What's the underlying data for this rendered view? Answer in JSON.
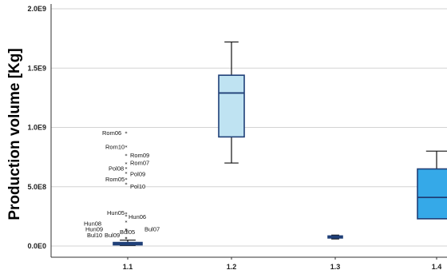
{
  "chart_data": {
    "type": "boxplot",
    "title": "",
    "xlabel": "",
    "ylabel": "Production volume [Kg]",
    "ylim": [
      0,
      2000000000
    ],
    "y_tick_labels": [
      "0.0E0",
      "5.0E8",
      "1.0E9",
      "1.5E9",
      "2.0E9"
    ],
    "grid": true,
    "categories": [
      "1.1",
      "1.2",
      "1.3",
      "1.4"
    ],
    "boxes": [
      {
        "category": "1.1",
        "min": 5000000,
        "q1": 10000000,
        "median": 20000000,
        "q3": 30000000,
        "max": 50000000,
        "color": "#3a6fb0"
      },
      {
        "category": "1.2",
        "min": 700000000,
        "q1": 920000000,
        "median": 1290000000,
        "q3": 1440000000,
        "max": 1720000000,
        "color": "#bfe3f2"
      },
      {
        "category": "1.3",
        "min": 60000000,
        "q1": 68000000,
        "median": 75000000,
        "q3": 85000000,
        "max": 92000000,
        "color": "#444444"
      },
      {
        "category": "1.4",
        "min": 230000000,
        "q1": 230000000,
        "median": 410000000,
        "q3": 650000000,
        "max": 800000000,
        "color": "#35a9e8"
      }
    ],
    "outliers": [
      {
        "category": "1.1",
        "label": "Rom06",
        "value": 950000000
      },
      {
        "category": "1.1",
        "label": "Rom10",
        "value": 830000000
      },
      {
        "category": "1.1",
        "label": "Rom09",
        "value": 760000000
      },
      {
        "category": "1.1",
        "label": "Rom07",
        "value": 690000000
      },
      {
        "category": "1.1",
        "label": "Pol08",
        "value": 650000000
      },
      {
        "category": "1.1",
        "label": "Pol09",
        "value": 610000000
      },
      {
        "category": "1.1",
        "label": "Rom05",
        "value": 560000000
      },
      {
        "category": "1.1",
        "label": "Pol10",
        "value": 520000000
      },
      {
        "category": "1.1",
        "label": "Hun05",
        "value": 270000000
      },
      {
        "category": "1.1",
        "label": "Hun06",
        "value": 250000000
      },
      {
        "category": "1.1",
        "label": "Hun08",
        "value": 200000000
      },
      {
        "category": "1.1",
        "label": "Hun09",
        "value": 130000000
      },
      {
        "category": "1.1",
        "label": "Bul05",
        "value": 120000000
      },
      {
        "category": "1.1",
        "label": "Bul07",
        "value": 130000000
      },
      {
        "category": "1.1",
        "label": "Bul10",
        "value": 60000000
      },
      {
        "category": "1.1",
        "label": "Bul09",
        "value": 60000000
      }
    ]
  }
}
